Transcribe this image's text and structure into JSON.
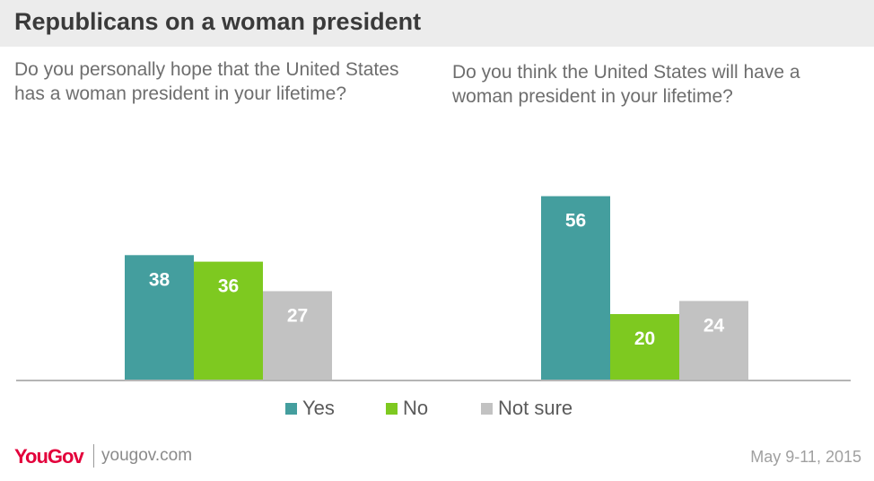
{
  "header": {
    "title": "Republicans on a woman president"
  },
  "colors": {
    "yes": "#449e9e",
    "no": "#7ec920",
    "not_sure": "#c2c2c2",
    "brand": "#e3003b"
  },
  "chart_data": [
    {
      "type": "bar",
      "title": "Do you personally hope that the United States has a woman president in your lifetime?",
      "categories": [
        "Yes",
        "No",
        "Not sure"
      ],
      "values": [
        38,
        36,
        27
      ]
    },
    {
      "type": "bar",
      "title": "Do you think the United States will have a woman president in your lifetime?",
      "categories": [
        "Yes",
        "No",
        "Not sure"
      ],
      "values": [
        56,
        20,
        24
      ]
    }
  ],
  "legend": [
    "Yes",
    "No",
    "Not sure"
  ],
  "footer": {
    "brand": "YouGov",
    "url": "yougov.com",
    "date": "May 9-11, 2015"
  }
}
